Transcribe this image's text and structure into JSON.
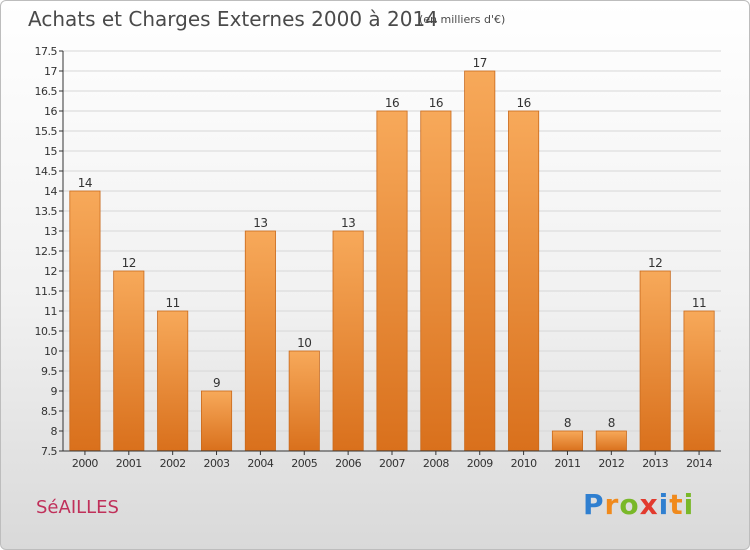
{
  "title": "Achats et Charges Externes 2000 à 2014",
  "subtitle": "(en milliers d'€)",
  "town": "SéAILLES",
  "logo": {
    "text": "Proxiti",
    "letters": [
      "P",
      "r",
      "o",
      "x",
      "i",
      "t",
      "i"
    ],
    "colors": [
      "#2f7fd0",
      "#f08a1c",
      "#79b828",
      "#e23a2e",
      "#2f7fd0",
      "#f08a1c",
      "#79b828"
    ]
  },
  "colors": {
    "bar_top": "#f7a95a",
    "bar_bottom": "#d9701c",
    "bar_edge": "#c8691c",
    "grid": "#d7d7d7",
    "axis": "#333333",
    "text": "#333333"
  },
  "chart_data": {
    "type": "bar",
    "categories": [
      "2000",
      "2001",
      "2002",
      "2003",
      "2004",
      "2005",
      "2006",
      "2007",
      "2008",
      "2009",
      "2010",
      "2011",
      "2012",
      "2013",
      "2014"
    ],
    "values": [
      14,
      12,
      11,
      9,
      13,
      10,
      13,
      16,
      16,
      17,
      16,
      8,
      8,
      12,
      11
    ],
    "value_labels": [
      "14",
      "12",
      "11",
      "9",
      "13",
      "10",
      "13",
      "16",
      "16",
      "17",
      "16",
      "8",
      "8",
      "12",
      "11"
    ],
    "ylim": [
      7.5,
      17.5
    ],
    "yticks": [
      7.5,
      8,
      8.5,
      9,
      9.5,
      10,
      10.5,
      11,
      11.5,
      12,
      12.5,
      13,
      13.5,
      14,
      14.5,
      15,
      15.5,
      16,
      16.5,
      17,
      17.5
    ],
    "ytick_labels": [
      "7.5",
      "8",
      "8.5",
      "9",
      "9.5",
      "10",
      "10.5",
      "11",
      "11.5",
      "12",
      "12.5",
      "13",
      "13.5",
      "14",
      "14.5",
      "15",
      "15.5",
      "16",
      "16.5",
      "17",
      "17.5"
    ],
    "grid": true,
    "xlabel": "",
    "ylabel": ""
  }
}
